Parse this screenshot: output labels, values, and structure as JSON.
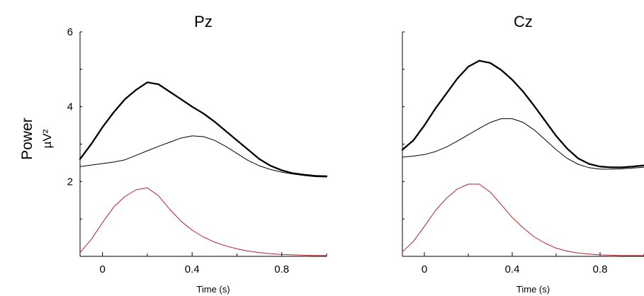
{
  "y_label": {
    "quantity": "Power",
    "unit": "µV²"
  },
  "colors": {
    "black": "#000000",
    "red": "#b2232a"
  },
  "chart_data": [
    {
      "type": "line",
      "title": "Pz",
      "xlabel": "Time (s)",
      "ylabel": "Power µV²",
      "xlim": [
        -0.1,
        1.0
      ],
      "ylim": [
        0,
        6
      ],
      "x_ticks": [
        0,
        0.4,
        0.8
      ],
      "x_tick_labels": [
        "0",
        "0.4",
        "0.8"
      ],
      "y_ticks": [
        2,
        4,
        6
      ],
      "y_tick_labels": [
        "2",
        "4",
        "6"
      ],
      "series": [
        {
          "color": "#000000",
          "width": 2.3,
          "x": [
            -0.1,
            -0.05,
            0.0,
            0.05,
            0.1,
            0.15,
            0.2,
            0.25,
            0.3,
            0.35,
            0.4,
            0.45,
            0.5,
            0.55,
            0.6,
            0.65,
            0.7,
            0.75,
            0.8,
            0.85,
            0.9,
            0.95,
            1.0
          ],
          "y": [
            2.6,
            3.0,
            3.45,
            3.85,
            4.2,
            4.45,
            4.65,
            4.6,
            4.4,
            4.2,
            4.0,
            3.82,
            3.6,
            3.35,
            3.1,
            2.85,
            2.6,
            2.42,
            2.3,
            2.22,
            2.18,
            2.15,
            2.14
          ]
        },
        {
          "color": "#000000",
          "width": 1.0,
          "x": [
            -0.1,
            -0.05,
            0.0,
            0.05,
            0.1,
            0.15,
            0.2,
            0.25,
            0.3,
            0.35,
            0.4,
            0.45,
            0.5,
            0.55,
            0.6,
            0.65,
            0.7,
            0.75,
            0.8,
            0.85,
            0.9,
            0.95,
            1.0
          ],
          "y": [
            2.4,
            2.44,
            2.48,
            2.52,
            2.58,
            2.7,
            2.82,
            2.94,
            3.05,
            3.16,
            3.22,
            3.2,
            3.1,
            2.94,
            2.75,
            2.56,
            2.42,
            2.32,
            2.25,
            2.2,
            2.16,
            2.13,
            2.12
          ]
        },
        {
          "color": "#b2232a",
          "width": 1.0,
          "x": [
            -0.1,
            -0.05,
            0.0,
            0.05,
            0.1,
            0.15,
            0.2,
            0.25,
            0.3,
            0.35,
            0.4,
            0.45,
            0.5,
            0.55,
            0.6,
            0.65,
            0.7,
            0.75,
            0.8,
            0.85,
            0.9,
            0.95,
            1.0
          ],
          "y": [
            0.1,
            0.45,
            0.9,
            1.32,
            1.6,
            1.78,
            1.83,
            1.62,
            1.26,
            0.94,
            0.7,
            0.52,
            0.38,
            0.28,
            0.2,
            0.14,
            0.1,
            0.07,
            0.05,
            0.04,
            0.03,
            0.02,
            0.02
          ]
        }
      ]
    },
    {
      "type": "line",
      "title": "Cz",
      "xlabel": "Time (s)",
      "ylabel": "",
      "xlim": [
        -0.1,
        1.0
      ],
      "ylim": [
        0,
        6
      ],
      "x_ticks": [
        0,
        0.4,
        0.8
      ],
      "x_tick_labels": [
        "0",
        "0.4",
        "0.8"
      ],
      "y_ticks": [
        2,
        4,
        6
      ],
      "y_tick_labels": [],
      "series": [
        {
          "color": "#000000",
          "width": 2.3,
          "x": [
            -0.1,
            -0.05,
            0.0,
            0.05,
            0.1,
            0.15,
            0.2,
            0.25,
            0.3,
            0.35,
            0.4,
            0.45,
            0.5,
            0.55,
            0.6,
            0.65,
            0.7,
            0.75,
            0.8,
            0.85,
            0.9,
            0.95,
            1.0
          ],
          "y": [
            2.85,
            3.1,
            3.5,
            3.95,
            4.35,
            4.75,
            5.07,
            5.23,
            5.17,
            4.98,
            4.72,
            4.4,
            4.02,
            3.62,
            3.22,
            2.88,
            2.62,
            2.47,
            2.4,
            2.38,
            2.38,
            2.4,
            2.43
          ]
        },
        {
          "color": "#000000",
          "width": 1.0,
          "x": [
            -0.1,
            -0.05,
            0.0,
            0.05,
            0.1,
            0.15,
            0.2,
            0.25,
            0.3,
            0.35,
            0.4,
            0.45,
            0.5,
            0.55,
            0.6,
            0.65,
            0.7,
            0.75,
            0.8,
            0.85,
            0.9,
            0.95,
            1.0
          ],
          "y": [
            2.65,
            2.68,
            2.72,
            2.8,
            2.92,
            3.08,
            3.25,
            3.42,
            3.58,
            3.68,
            3.68,
            3.58,
            3.38,
            3.12,
            2.85,
            2.62,
            2.46,
            2.37,
            2.33,
            2.33,
            2.34,
            2.36,
            2.38
          ]
        },
        {
          "color": "#b2232a",
          "width": 1.0,
          "x": [
            -0.1,
            -0.05,
            0.0,
            0.05,
            0.1,
            0.15,
            0.2,
            0.25,
            0.3,
            0.35,
            0.4,
            0.45,
            0.5,
            0.55,
            0.6,
            0.65,
            0.7,
            0.75,
            0.8,
            0.85,
            0.9,
            0.95,
            1.0
          ],
          "y": [
            0.12,
            0.4,
            0.8,
            1.22,
            1.55,
            1.8,
            1.93,
            1.93,
            1.72,
            1.38,
            1.04,
            0.76,
            0.52,
            0.35,
            0.22,
            0.14,
            0.09,
            0.06,
            0.04,
            0.03,
            0.02,
            0.02,
            0.02
          ]
        }
      ]
    }
  ]
}
